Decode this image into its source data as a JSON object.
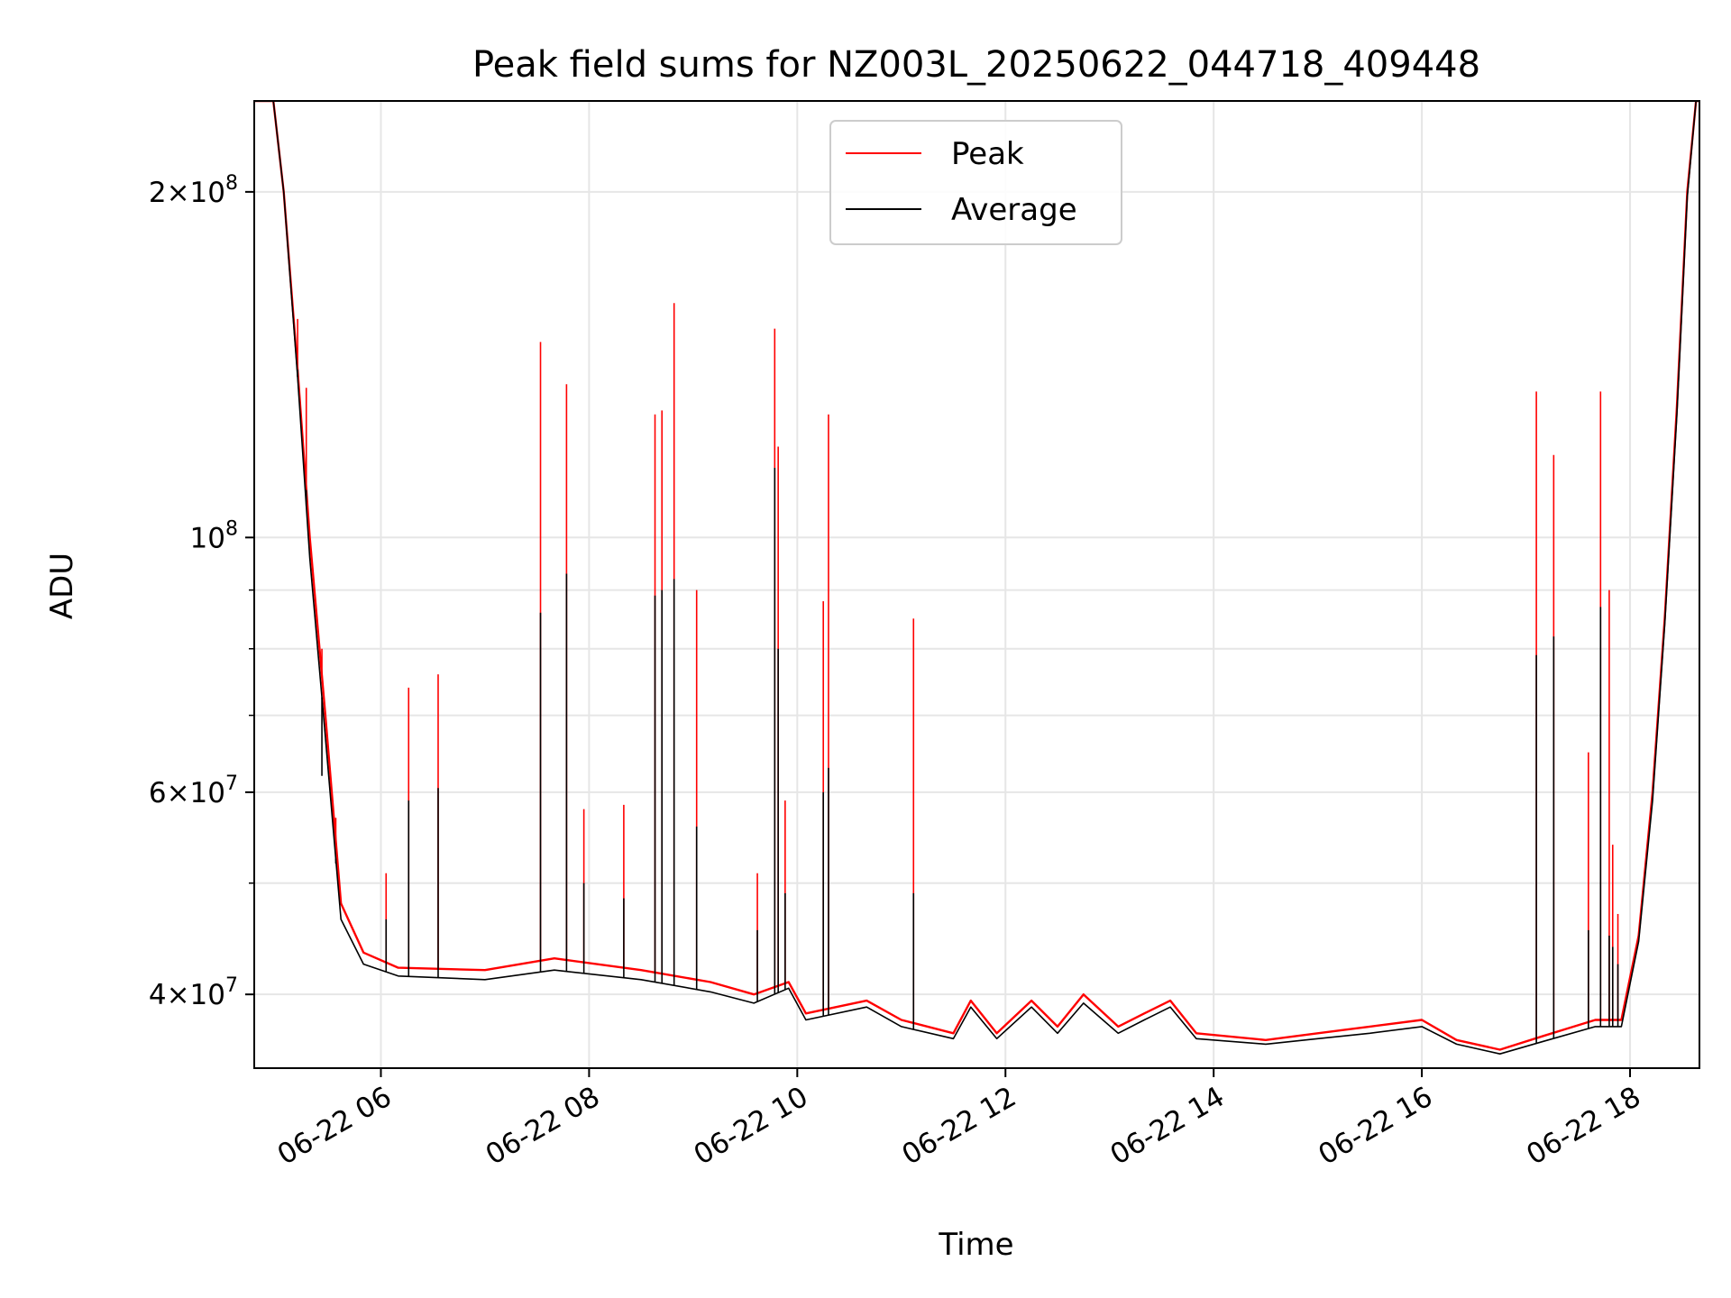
{
  "chart_data": {
    "type": "line",
    "title": "Peak field sums for NZ003L_20250622_044718_409448",
    "xlabel": "Time",
    "ylabel": "ADU",
    "x_scale": "time",
    "y_scale": "log",
    "xlim": [
      "2025-06-22T04:47:00",
      "2025-06-22T18:40:00"
    ],
    "ylim": [
      34500000,
      240000000
    ],
    "x_ticks": [
      {
        "value": "2025-06-22T06:00:00",
        "label": "06-22 06"
      },
      {
        "value": "2025-06-22T08:00:00",
        "label": "06-22 08"
      },
      {
        "value": "2025-06-22T10:00:00",
        "label": "06-22 10"
      },
      {
        "value": "2025-06-22T12:00:00",
        "label": "06-22 12"
      },
      {
        "value": "2025-06-22T14:00:00",
        "label": "06-22 14"
      },
      {
        "value": "2025-06-22T16:00:00",
        "label": "06-22 16"
      },
      {
        "value": "2025-06-22T18:00:00",
        "label": "06-22 18"
      }
    ],
    "y_ticks_major": [
      {
        "value": 40000000,
        "base": "4×10",
        "exp": "7"
      },
      {
        "value": 60000000,
        "base": "6×10",
        "exp": "7"
      },
      {
        "value": 100000000,
        "base": "10",
        "exp": "8"
      },
      {
        "value": 200000000,
        "base": "2×10",
        "exp": "8"
      }
    ],
    "y_ticks_minor": [
      50000000,
      70000000,
      80000000,
      90000000
    ],
    "grid": true,
    "legend_position": "top-center",
    "series": [
      {
        "name": "Peak",
        "color": "#ff0000",
        "baseline": [
          [
            "2025-06-22T04:47:00",
            240000000
          ],
          [
            "2025-06-22T04:58:00",
            240000000
          ],
          [
            "2025-06-22T05:04:00",
            200000000
          ],
          [
            "2025-06-22T05:12:00",
            140000000
          ],
          [
            "2025-06-22T05:19:00",
            100000000
          ],
          [
            "2025-06-22T05:28:00",
            70000000
          ],
          [
            "2025-06-22T05:37:00",
            48000000
          ],
          [
            "2025-06-22T05:50:00",
            43500000
          ],
          [
            "2025-06-22T06:10:00",
            42200000
          ],
          [
            "2025-06-22T07:00:00",
            42000000
          ],
          [
            "2025-06-22T07:40:00",
            43000000
          ],
          [
            "2025-06-22T08:30:00",
            42000000
          ],
          [
            "2025-06-22T09:10:00",
            41000000
          ],
          [
            "2025-06-22T09:35:00",
            40000000
          ],
          [
            "2025-06-22T09:55:00",
            41000000
          ],
          [
            "2025-06-22T10:05:00",
            38500000
          ],
          [
            "2025-06-22T10:40:00",
            39500000
          ],
          [
            "2025-06-22T11:00:00",
            38000000
          ],
          [
            "2025-06-22T11:30:00",
            37000000
          ],
          [
            "2025-06-22T11:40:00",
            39500000
          ],
          [
            "2025-06-22T11:55:00",
            37000000
          ],
          [
            "2025-06-22T12:15:00",
            39500000
          ],
          [
            "2025-06-22T12:30:00",
            37500000
          ],
          [
            "2025-06-22T12:45:00",
            40000000
          ],
          [
            "2025-06-22T13:05:00",
            37500000
          ],
          [
            "2025-06-22T13:20:00",
            38500000
          ],
          [
            "2025-06-22T13:35:00",
            39500000
          ],
          [
            "2025-06-22T13:50:00",
            37000000
          ],
          [
            "2025-06-22T14:30:00",
            36500000
          ],
          [
            "2025-06-22T15:00:00",
            37000000
          ],
          [
            "2025-06-22T15:30:00",
            37500000
          ],
          [
            "2025-06-22T16:00:00",
            38000000
          ],
          [
            "2025-06-22T16:20:00",
            36500000
          ],
          [
            "2025-06-22T16:45:00",
            35800000
          ],
          [
            "2025-06-22T17:10:00",
            36800000
          ],
          [
            "2025-06-22T17:40:00",
            38000000
          ],
          [
            "2025-06-22T17:55:00",
            38000000
          ],
          [
            "2025-06-22T18:05:00",
            45000000
          ],
          [
            "2025-06-22T18:13:00",
            60000000
          ],
          [
            "2025-06-22T18:20:00",
            85000000
          ],
          [
            "2025-06-22T18:27:00",
            130000000
          ],
          [
            "2025-06-22T18:33:00",
            200000000
          ],
          [
            "2025-06-22T18:38:00",
            240000000
          ],
          [
            "2025-06-22T18:40:00",
            240000000
          ]
        ],
        "spikes": [
          [
            "2025-06-22T05:12:00",
            155000000
          ],
          [
            "2025-06-22T05:17:00",
            135000000
          ],
          [
            "2025-06-22T05:26:00",
            80000000
          ],
          [
            "2025-06-22T05:34:00",
            57000000
          ],
          [
            "2025-06-22T06:03:00",
            51000000
          ],
          [
            "2025-06-22T06:16:00",
            74000000
          ],
          [
            "2025-06-22T06:33:00",
            76000000
          ],
          [
            "2025-06-22T07:32:00",
            148000000
          ],
          [
            "2025-06-22T07:47:00",
            136000000
          ],
          [
            "2025-06-22T07:57:00",
            58000000
          ],
          [
            "2025-06-22T08:20:00",
            58500000
          ],
          [
            "2025-06-22T08:38:00",
            128000000
          ],
          [
            "2025-06-22T08:42:00",
            129000000
          ],
          [
            "2025-06-22T08:49:00",
            160000000
          ],
          [
            "2025-06-22T09:02:00",
            90000000
          ],
          [
            "2025-06-22T09:37:00",
            51000000
          ],
          [
            "2025-06-22T09:47:00",
            152000000
          ],
          [
            "2025-06-22T09:49:00",
            120000000
          ],
          [
            "2025-06-22T09:53:00",
            59000000
          ],
          [
            "2025-06-22T10:15:00",
            88000000
          ],
          [
            "2025-06-22T10:18:00",
            128000000
          ],
          [
            "2025-06-22T11:07:00",
            85000000
          ],
          [
            "2025-06-22T17:06:00",
            134000000
          ],
          [
            "2025-06-22T17:16:00",
            118000000
          ],
          [
            "2025-06-22T17:36:00",
            65000000
          ],
          [
            "2025-06-22T17:43:00",
            134000000
          ],
          [
            "2025-06-22T17:48:00",
            90000000
          ],
          [
            "2025-06-22T17:50:00",
            54000000
          ],
          [
            "2025-06-22T17:53:00",
            47000000
          ]
        ]
      },
      {
        "name": "Average",
        "color": "#000000",
        "baseline": [
          [
            "2025-06-22T04:47:00",
            240000000
          ],
          [
            "2025-06-22T04:58:00",
            240000000
          ],
          [
            "2025-06-22T05:04:00",
            200000000
          ],
          [
            "2025-06-22T05:12:00",
            138000000
          ],
          [
            "2025-06-22T05:19:00",
            96000000
          ],
          [
            "2025-06-22T05:28:00",
            67000000
          ],
          [
            "2025-06-22T05:37:00",
            46500000
          ],
          [
            "2025-06-22T05:50:00",
            42500000
          ],
          [
            "2025-06-22T06:10:00",
            41500000
          ],
          [
            "2025-06-22T07:00:00",
            41200000
          ],
          [
            "2025-06-22T07:40:00",
            42000000
          ],
          [
            "2025-06-22T08:30:00",
            41200000
          ],
          [
            "2025-06-22T09:10:00",
            40200000
          ],
          [
            "2025-06-22T09:35:00",
            39300000
          ],
          [
            "2025-06-22T09:55:00",
            40500000
          ],
          [
            "2025-06-22T10:05:00",
            38000000
          ],
          [
            "2025-06-22T10:40:00",
            39000000
          ],
          [
            "2025-06-22T11:00:00",
            37500000
          ],
          [
            "2025-06-22T11:30:00",
            36600000
          ],
          [
            "2025-06-22T11:40:00",
            39000000
          ],
          [
            "2025-06-22T11:55:00",
            36600000
          ],
          [
            "2025-06-22T12:15:00",
            39000000
          ],
          [
            "2025-06-22T12:30:00",
            37000000
          ],
          [
            "2025-06-22T12:45:00",
            39300000
          ],
          [
            "2025-06-22T13:05:00",
            37000000
          ],
          [
            "2025-06-22T13:20:00",
            38000000
          ],
          [
            "2025-06-22T13:35:00",
            39000000
          ],
          [
            "2025-06-22T13:50:00",
            36600000
          ],
          [
            "2025-06-22T14:30:00",
            36200000
          ],
          [
            "2025-06-22T15:00:00",
            36600000
          ],
          [
            "2025-06-22T15:30:00",
            37000000
          ],
          [
            "2025-06-22T16:00:00",
            37500000
          ],
          [
            "2025-06-22T16:20:00",
            36200000
          ],
          [
            "2025-06-22T16:45:00",
            35500000
          ],
          [
            "2025-06-22T17:10:00",
            36400000
          ],
          [
            "2025-06-22T17:40:00",
            37500000
          ],
          [
            "2025-06-22T17:55:00",
            37500000
          ],
          [
            "2025-06-22T18:05:00",
            44500000
          ],
          [
            "2025-06-22T18:13:00",
            59000000
          ],
          [
            "2025-06-22T18:20:00",
            84000000
          ],
          [
            "2025-06-22T18:27:00",
            128000000
          ],
          [
            "2025-06-22T18:33:00",
            198000000
          ],
          [
            "2025-06-22T18:38:00",
            240000000
          ],
          [
            "2025-06-22T18:40:00",
            240000000
          ]
        ],
        "spikes": [
          [
            "2025-06-22T05:12:00",
            140000000
          ],
          [
            "2025-06-22T05:17:00",
            110000000
          ],
          [
            "2025-06-22T05:26:00",
            62000000
          ],
          [
            "2025-06-22T05:34:00",
            52000000
          ],
          [
            "2025-06-22T06:03:00",
            46500000
          ],
          [
            "2025-06-22T06:16:00",
            59000000
          ],
          [
            "2025-06-22T06:33:00",
            60500000
          ],
          [
            "2025-06-22T07:32:00",
            86000000
          ],
          [
            "2025-06-22T07:47:00",
            93000000
          ],
          [
            "2025-06-22T07:57:00",
            50000000
          ],
          [
            "2025-06-22T08:20:00",
            48500000
          ],
          [
            "2025-06-22T08:38:00",
            89000000
          ],
          [
            "2025-06-22T08:42:00",
            90000000
          ],
          [
            "2025-06-22T08:49:00",
            92000000
          ],
          [
            "2025-06-22T09:02:00",
            56000000
          ],
          [
            "2025-06-22T09:37:00",
            45500000
          ],
          [
            "2025-06-22T09:47:00",
            115000000
          ],
          [
            "2025-06-22T09:49:00",
            80000000
          ],
          [
            "2025-06-22T09:53:00",
            49000000
          ],
          [
            "2025-06-22T10:15:00",
            60000000
          ],
          [
            "2025-06-22T10:18:00",
            63000000
          ],
          [
            "2025-06-22T11:07:00",
            49000000
          ],
          [
            "2025-06-22T17:06:00",
            79000000
          ],
          [
            "2025-06-22T17:16:00",
            82000000
          ],
          [
            "2025-06-22T17:36:00",
            45500000
          ],
          [
            "2025-06-22T17:43:00",
            87000000
          ],
          [
            "2025-06-22T17:48:00",
            45000000
          ],
          [
            "2025-06-22T17:50:00",
            44000000
          ],
          [
            "2025-06-22T17:53:00",
            42500000
          ]
        ]
      }
    ]
  }
}
